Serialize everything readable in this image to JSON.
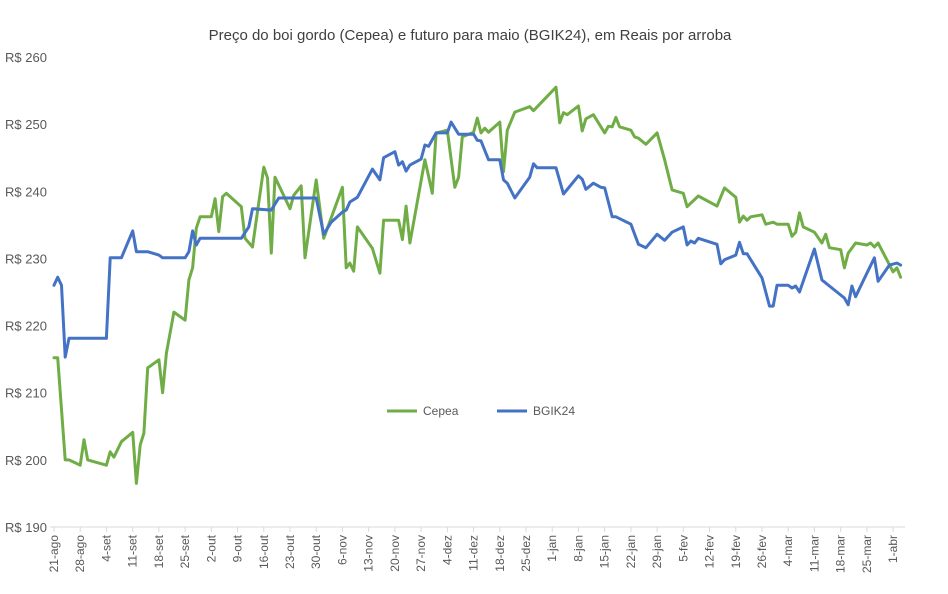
{
  "chart_data": {
    "type": "line",
    "title": "Preço do boi gordo (Cepea) e futuro para maio (BGIK24), em Reais por arroba",
    "xlabel": "",
    "ylabel": "",
    "ylim": [
      190,
      260
    ],
    "y_ticks": [
      190,
      200,
      210,
      220,
      230,
      240,
      250,
      260
    ],
    "y_tick_labels": [
      "R$ 190",
      "R$ 200",
      "R$ 210",
      "R$ 220",
      "R$ 230",
      "R$ 240",
      "R$ 250",
      "R$ 260"
    ],
    "x_tick_dates": [
      "2023-08-21",
      "2023-08-28",
      "2023-09-04",
      "2023-09-11",
      "2023-09-18",
      "2023-09-25",
      "2023-10-02",
      "2023-10-09",
      "2023-10-16",
      "2023-10-23",
      "2023-10-30",
      "2023-11-06",
      "2023-11-13",
      "2023-11-20",
      "2023-11-27",
      "2023-12-04",
      "2023-12-11",
      "2023-12-18",
      "2023-12-25",
      "2024-01-01",
      "2024-01-08",
      "2024-01-15",
      "2024-01-22",
      "2024-01-29",
      "2024-02-05",
      "2024-02-12",
      "2024-02-19",
      "2024-02-26",
      "2024-03-04",
      "2024-03-11",
      "2024-03-18",
      "2024-03-25",
      "2024-04-01"
    ],
    "x_tick_labels": [
      "21-ago",
      "28-ago",
      "4-set",
      "11-set",
      "18-set",
      "25-set",
      "2-out",
      "9-out",
      "16-out",
      "23-out",
      "30-out",
      "6-nov",
      "13-nov",
      "20-nov",
      "27-nov",
      "4-dez",
      "11-dez",
      "18-dez",
      "25-dez",
      "1-jan",
      "8-jan",
      "15-jan",
      "22-jan",
      "29-jan",
      "5-fev",
      "12-fev",
      "19-fev",
      "26-fev",
      "4-mar",
      "11-mar",
      "18-mar",
      "25-mar",
      "1-abr"
    ],
    "grid": false,
    "legend_position": "center",
    "series": [
      {
        "name": "Cepea",
        "color": "#70AD47",
        "points": [
          [
            "2023-08-21",
            215.2
          ],
          [
            "2023-08-22",
            215.2
          ],
          [
            "2023-08-24",
            200.0
          ],
          [
            "2023-08-25",
            200.0
          ],
          [
            "2023-08-28",
            199.2
          ],
          [
            "2023-08-29",
            203.0
          ],
          [
            "2023-08-30",
            200.0
          ],
          [
            "2023-09-04",
            199.2
          ],
          [
            "2023-09-05",
            201.2
          ],
          [
            "2023-09-06",
            200.4
          ],
          [
            "2023-09-08",
            202.7
          ],
          [
            "2023-09-11",
            204.1
          ],
          [
            "2023-09-12",
            196.5
          ],
          [
            "2023-09-13",
            202.2
          ],
          [
            "2023-09-14",
            204.0
          ],
          [
            "2023-09-15",
            213.7
          ],
          [
            "2023-09-18",
            214.9
          ],
          [
            "2023-09-19",
            210.0
          ],
          [
            "2023-09-20",
            215.9
          ],
          [
            "2023-09-22",
            222.0
          ],
          [
            "2023-09-25",
            220.8
          ],
          [
            "2023-09-26",
            226.8
          ],
          [
            "2023-09-27",
            228.6
          ],
          [
            "2023-09-28",
            234.5
          ],
          [
            "2023-09-29",
            236.2
          ],
          [
            "2023-10-02",
            236.2
          ],
          [
            "2023-10-03",
            238.9
          ],
          [
            "2023-10-04",
            234.0
          ],
          [
            "2023-10-05",
            239.2
          ],
          [
            "2023-10-06",
            239.7
          ],
          [
            "2023-10-09",
            238.2
          ],
          [
            "2023-10-10",
            237.7
          ],
          [
            "2023-10-11",
            233.0
          ],
          [
            "2023-10-13",
            231.7
          ],
          [
            "2023-10-16",
            243.6
          ],
          [
            "2023-10-17",
            242.0
          ],
          [
            "2023-10-18",
            230.8
          ],
          [
            "2023-10-19",
            242.1
          ],
          [
            "2023-10-23",
            237.4
          ],
          [
            "2023-10-24",
            239.4
          ],
          [
            "2023-10-26",
            240.8
          ],
          [
            "2023-10-27",
            230.1
          ],
          [
            "2023-10-30",
            241.7
          ],
          [
            "2023-11-01",
            233.0
          ],
          [
            "2023-11-06",
            240.6
          ],
          [
            "2023-11-07",
            228.6
          ],
          [
            "2023-11-08",
            229.3
          ],
          [
            "2023-11-09",
            228.1
          ],
          [
            "2023-11-10",
            234.7
          ],
          [
            "2023-11-14",
            231.5
          ],
          [
            "2023-11-16",
            227.8
          ],
          [
            "2023-11-17",
            235.7
          ],
          [
            "2023-11-21",
            235.7
          ],
          [
            "2023-11-22",
            232.8
          ],
          [
            "2023-11-23",
            237.8
          ],
          [
            "2023-11-24",
            232.3
          ],
          [
            "2023-11-28",
            244.7
          ],
          [
            "2023-11-30",
            239.7
          ],
          [
            "2023-12-01",
            248.7
          ],
          [
            "2023-12-04",
            249.1
          ],
          [
            "2023-12-06",
            240.6
          ],
          [
            "2023-12-07",
            242.1
          ],
          [
            "2023-12-08",
            248.1
          ],
          [
            "2023-12-11",
            248.8
          ],
          [
            "2023-12-12",
            250.9
          ],
          [
            "2023-12-13",
            248.7
          ],
          [
            "2023-12-14",
            249.4
          ],
          [
            "2023-12-15",
            248.8
          ],
          [
            "2023-12-18",
            250.3
          ],
          [
            "2023-12-19",
            242.9
          ],
          [
            "2023-12-20",
            249.1
          ],
          [
            "2023-12-22",
            251.8
          ],
          [
            "2023-12-26",
            252.6
          ],
          [
            "2023-12-27",
            252.0
          ],
          [
            "2024-01-02",
            255.5
          ],
          [
            "2024-01-03",
            250.2
          ],
          [
            "2024-01-04",
            251.7
          ],
          [
            "2024-01-05",
            251.4
          ],
          [
            "2024-01-08",
            252.7
          ],
          [
            "2024-01-09",
            249.0
          ],
          [
            "2024-01-10",
            250.8
          ],
          [
            "2024-01-12",
            251.4
          ],
          [
            "2024-01-14",
            249.6
          ],
          [
            "2024-01-15",
            248.7
          ],
          [
            "2024-01-16",
            249.7
          ],
          [
            "2024-01-17",
            249.6
          ],
          [
            "2024-01-18",
            251.0
          ],
          [
            "2024-01-19",
            249.6
          ],
          [
            "2024-01-22",
            249.1
          ],
          [
            "2024-01-23",
            248.1
          ],
          [
            "2024-01-24",
            247.9
          ],
          [
            "2024-01-26",
            247.0
          ],
          [
            "2024-01-29",
            248.7
          ],
          [
            "2024-01-31",
            244.7
          ],
          [
            "2024-02-02",
            240.2
          ],
          [
            "2024-02-05",
            239.7
          ],
          [
            "2024-02-06",
            237.7
          ],
          [
            "2024-02-09",
            239.3
          ],
          [
            "2024-02-14",
            237.8
          ],
          [
            "2024-02-16",
            240.5
          ],
          [
            "2024-02-19",
            239.1
          ],
          [
            "2024-02-20",
            235.4
          ],
          [
            "2024-02-21",
            236.3
          ],
          [
            "2024-02-22",
            235.7
          ],
          [
            "2024-02-23",
            236.2
          ],
          [
            "2024-02-26",
            236.5
          ],
          [
            "2024-02-27",
            235.1
          ],
          [
            "2024-02-29",
            235.4
          ],
          [
            "2024-03-01",
            235.1
          ],
          [
            "2024-03-04",
            235.1
          ],
          [
            "2024-03-05",
            233.3
          ],
          [
            "2024-03-06",
            233.9
          ],
          [
            "2024-03-07",
            236.8
          ],
          [
            "2024-03-08",
            234.7
          ],
          [
            "2024-03-11",
            233.9
          ],
          [
            "2024-03-13",
            232.3
          ],
          [
            "2024-03-14",
            233.6
          ],
          [
            "2024-03-15",
            231.6
          ],
          [
            "2024-03-18",
            231.3
          ],
          [
            "2024-03-19",
            228.6
          ],
          [
            "2024-03-20",
            230.8
          ],
          [
            "2024-03-22",
            232.3
          ],
          [
            "2024-03-25",
            232.0
          ],
          [
            "2024-03-26",
            232.3
          ],
          [
            "2024-03-27",
            231.7
          ],
          [
            "2024-03-28",
            232.3
          ],
          [
            "2024-04-01",
            228.0
          ],
          [
            "2024-04-02",
            228.6
          ],
          [
            "2024-04-03",
            227.2
          ]
        ]
      },
      {
        "name": "BGIK24",
        "color": "#4472C4",
        "points": [
          [
            "2023-08-21",
            226.0
          ],
          [
            "2023-08-22",
            227.2
          ],
          [
            "2023-08-23",
            226.0
          ],
          [
            "2023-08-24",
            215.3
          ],
          [
            "2023-08-25",
            218.1
          ],
          [
            "2023-09-04",
            218.1
          ],
          [
            "2023-09-05",
            230.1
          ],
          [
            "2023-09-08",
            230.1
          ],
          [
            "2023-09-11",
            234.1
          ],
          [
            "2023-09-12",
            231.0
          ],
          [
            "2023-09-15",
            231.0
          ],
          [
            "2023-09-18",
            230.5
          ],
          [
            "2023-09-19",
            230.1
          ],
          [
            "2023-09-25",
            230.1
          ],
          [
            "2023-09-26",
            231.0
          ],
          [
            "2023-09-27",
            234.1
          ],
          [
            "2023-09-28",
            232.0
          ],
          [
            "2023-09-29",
            233.0
          ],
          [
            "2023-10-10",
            233.0
          ],
          [
            "2023-10-12",
            234.7
          ],
          [
            "2023-10-13",
            237.4
          ],
          [
            "2023-10-18",
            237.2
          ],
          [
            "2023-10-20",
            239.0
          ],
          [
            "2023-10-30",
            239.0
          ],
          [
            "2023-11-01",
            233.6
          ],
          [
            "2023-11-03",
            235.4
          ],
          [
            "2023-11-06",
            236.9
          ],
          [
            "2023-11-07",
            237.2
          ],
          [
            "2023-11-08",
            238.4
          ],
          [
            "2023-11-10",
            239.1
          ],
          [
            "2023-11-14",
            243.3
          ],
          [
            "2023-11-16",
            241.7
          ],
          [
            "2023-11-17",
            245.0
          ],
          [
            "2023-11-20",
            245.9
          ],
          [
            "2023-11-21",
            243.9
          ],
          [
            "2023-11-22",
            244.4
          ],
          [
            "2023-11-23",
            243.0
          ],
          [
            "2023-11-24",
            243.9
          ],
          [
            "2023-11-27",
            244.8
          ],
          [
            "2023-11-28",
            246.9
          ],
          [
            "2023-11-29",
            246.7
          ],
          [
            "2023-12-01",
            248.7
          ],
          [
            "2023-12-04",
            248.7
          ],
          [
            "2023-12-05",
            250.3
          ],
          [
            "2023-12-07",
            248.5
          ],
          [
            "2023-12-11",
            248.5
          ],
          [
            "2023-12-12",
            247.6
          ],
          [
            "2023-12-13",
            247.5
          ],
          [
            "2023-12-15",
            244.7
          ],
          [
            "2023-12-18",
            244.7
          ],
          [
            "2023-12-19",
            241.7
          ],
          [
            "2023-12-20",
            241.2
          ],
          [
            "2023-12-22",
            239.0
          ],
          [
            "2023-12-26",
            242.1
          ],
          [
            "2023-12-27",
            244.1
          ],
          [
            "2023-12-28",
            243.5
          ],
          [
            "2024-01-02",
            243.5
          ],
          [
            "2024-01-04",
            239.6
          ],
          [
            "2024-01-08",
            242.3
          ],
          [
            "2024-01-09",
            241.8
          ],
          [
            "2024-01-10",
            240.3
          ],
          [
            "2024-01-12",
            241.2
          ],
          [
            "2024-01-14",
            240.6
          ],
          [
            "2024-01-15",
            240.5
          ],
          [
            "2024-01-17",
            236.2
          ],
          [
            "2024-01-18",
            236.2
          ],
          [
            "2024-01-22",
            235.1
          ],
          [
            "2024-01-24",
            232.1
          ],
          [
            "2024-01-26",
            231.6
          ],
          [
            "2024-01-29",
            233.6
          ],
          [
            "2024-01-31",
            232.7
          ],
          [
            "2024-02-02",
            233.9
          ],
          [
            "2024-02-05",
            234.7
          ],
          [
            "2024-02-06",
            232.0
          ],
          [
            "2024-02-07",
            232.6
          ],
          [
            "2024-02-08",
            232.3
          ],
          [
            "2024-02-09",
            233.0
          ],
          [
            "2024-02-14",
            232.1
          ],
          [
            "2024-02-15",
            229.2
          ],
          [
            "2024-02-16",
            229.8
          ],
          [
            "2024-02-19",
            230.5
          ],
          [
            "2024-02-20",
            232.4
          ],
          [
            "2024-02-21",
            230.7
          ],
          [
            "2024-02-22",
            230.7
          ],
          [
            "2024-02-26",
            227.1
          ],
          [
            "2024-02-28",
            222.9
          ],
          [
            "2024-02-29",
            222.9
          ],
          [
            "2024-03-01",
            226.0
          ],
          [
            "2024-03-04",
            226.0
          ],
          [
            "2024-03-05",
            225.6
          ],
          [
            "2024-03-06",
            225.9
          ],
          [
            "2024-03-07",
            225.0
          ],
          [
            "2024-03-11",
            231.4
          ],
          [
            "2024-03-13",
            226.8
          ],
          [
            "2024-03-17",
            225.0
          ],
          [
            "2024-03-19",
            224.1
          ],
          [
            "2024-03-20",
            223.1
          ],
          [
            "2024-03-21",
            225.9
          ],
          [
            "2024-03-22",
            224.3
          ],
          [
            "2024-03-25",
            227.8
          ],
          [
            "2024-03-27",
            230.1
          ],
          [
            "2024-03-28",
            226.6
          ],
          [
            "2024-03-31",
            229.0
          ],
          [
            "2024-04-02",
            229.3
          ],
          [
            "2024-04-03",
            229.0
          ]
        ]
      }
    ]
  }
}
